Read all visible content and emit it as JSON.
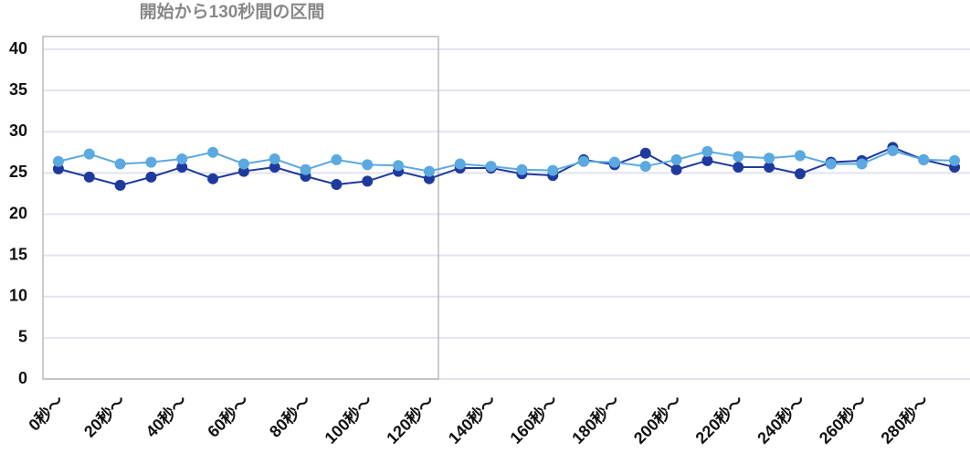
{
  "chart_data": {
    "type": "line",
    "annotation": "開始から130秒間の区間",
    "categories": [
      "0秒〜",
      null,
      "20秒〜",
      null,
      "40秒〜",
      null,
      "60秒〜",
      null,
      "80秒〜",
      null,
      "100秒〜",
      null,
      "120秒〜",
      null,
      "140秒〜",
      null,
      "160秒〜",
      null,
      "180秒〜",
      null,
      "200秒〜",
      null,
      "220秒〜",
      null,
      "240秒〜",
      null,
      "260秒〜",
      null,
      "280秒〜",
      null
    ],
    "series": [
      {
        "color": "#1f3a9e",
        "values": [
          25.5,
          24.5,
          23.5,
          24.5,
          25.7,
          24.3,
          25.2,
          25.7,
          24.6,
          23.6,
          24.0,
          25.2,
          24.3,
          25.6,
          25.6,
          24.9,
          24.7,
          26.6,
          26.0,
          27.4,
          25.4,
          26.5,
          25.7,
          25.7,
          24.9,
          26.3,
          26.5,
          28.1,
          26.6,
          25.7
        ]
      },
      {
        "color": "#5aa9e0",
        "values": [
          26.4,
          27.3,
          26.1,
          26.3,
          26.7,
          27.5,
          26.1,
          26.7,
          25.4,
          26.6,
          26.0,
          25.9,
          25.2,
          26.1,
          25.8,
          25.4,
          25.3,
          26.4,
          26.3,
          25.8,
          26.6,
          27.6,
          27.0,
          26.8,
          27.1,
          26.1,
          26.1,
          27.7,
          26.6,
          26.5
        ]
      }
    ],
    "ylim": [
      0,
      40
    ],
    "yticks": [
      0,
      5,
      10,
      15,
      20,
      25,
      30,
      35,
      40
    ],
    "grid": true
  }
}
